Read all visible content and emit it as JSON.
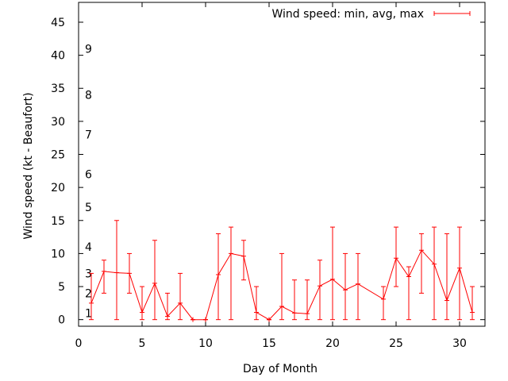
{
  "chart_data": {
    "type": "line",
    "title": "",
    "xlabel": "Day of Month",
    "ylabel": "Wind speed (kt - Beaufort)",
    "xlim": [
      0,
      32
    ],
    "ylim": [
      -1,
      48
    ],
    "xticks": [
      0,
      5,
      10,
      15,
      20,
      25,
      30
    ],
    "yticks": [
      0,
      5,
      10,
      15,
      20,
      25,
      30,
      35,
      40,
      45
    ],
    "grid": false,
    "legend_position": "top-right",
    "beaufort_scale": [
      {
        "label": "1",
        "y": 1
      },
      {
        "label": "2",
        "y": 4
      },
      {
        "label": "3",
        "y": 7
      },
      {
        "label": "4",
        "y": 11
      },
      {
        "label": "5",
        "y": 17
      },
      {
        "label": "6",
        "y": 22
      },
      {
        "label": "7",
        "y": 28
      },
      {
        "label": "8",
        "y": 34
      },
      {
        "label": "9",
        "y": 41
      }
    ],
    "series": [
      {
        "name": "Wind speed: min, avg, max",
        "color": "#ff0000",
        "points": [
          {
            "x": 1,
            "min": 0,
            "avg": 2.5,
            "max": 7
          },
          {
            "x": 2,
            "min": 4,
            "avg": 7.3,
            "max": 9
          },
          {
            "x": 3,
            "min": 0,
            "avg": 7.1,
            "max": 15
          },
          {
            "x": 4,
            "min": 4,
            "avg": 7.0,
            "max": 10
          },
          {
            "x": 5,
            "min": 0,
            "avg": 1.1,
            "max": 5
          },
          {
            "x": 6,
            "min": 0,
            "avg": 5.5,
            "max": 12
          },
          {
            "x": 7,
            "min": 0,
            "avg": 0.5,
            "max": 4
          },
          {
            "x": 8,
            "min": 0,
            "avg": 2.5,
            "max": 7
          },
          {
            "x": 9,
            "min": 0,
            "avg": 0,
            "max": 0
          },
          {
            "x": 10,
            "min": 0,
            "avg": 0,
            "max": 0
          },
          {
            "x": 11,
            "min": 0,
            "avg": 6.8,
            "max": 13
          },
          {
            "x": 12,
            "min": 0,
            "avg": 10.0,
            "max": 14
          },
          {
            "x": 13,
            "min": 6,
            "avg": 9.6,
            "max": 12
          },
          {
            "x": 14,
            "min": 0,
            "avg": 1.1,
            "max": 5
          },
          {
            "x": 15,
            "min": 0,
            "avg": 0,
            "max": 0
          },
          {
            "x": 16,
            "min": 0,
            "avg": 2.0,
            "max": 10
          },
          {
            "x": 17,
            "min": 0,
            "avg": 1.0,
            "max": 6
          },
          {
            "x": 18,
            "min": 0,
            "avg": 0.9,
            "max": 6
          },
          {
            "x": 19,
            "min": 0,
            "avg": 5.1,
            "max": 9
          },
          {
            "x": 20,
            "min": 0,
            "avg": 6.1,
            "max": 14
          },
          {
            "x": 21,
            "min": 0,
            "avg": 4.5,
            "max": 10
          },
          {
            "x": 22,
            "min": 0,
            "avg": 5.4,
            "max": 10
          },
          {
            "x": 24,
            "min": 0,
            "avg": 3.1,
            "max": 5
          },
          {
            "x": 25,
            "min": 5,
            "avg": 9.3,
            "max": 14
          },
          {
            "x": 26,
            "min": 0,
            "avg": 6.5,
            "max": 8
          },
          {
            "x": 27,
            "min": 4,
            "avg": 10.5,
            "max": 13
          },
          {
            "x": 28,
            "min": 0,
            "avg": 8.4,
            "max": 14
          },
          {
            "x": 29,
            "min": 0,
            "avg": 2.9,
            "max": 13
          },
          {
            "x": 30,
            "min": 0,
            "avg": 7.8,
            "max": 14
          },
          {
            "x": 31,
            "min": 0,
            "avg": 1.1,
            "max": 5
          }
        ]
      }
    ]
  }
}
